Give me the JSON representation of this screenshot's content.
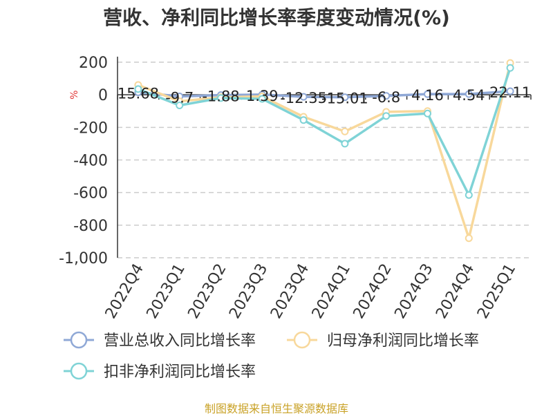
{
  "chart_data": {
    "type": "line",
    "title": "营收、净利同比增长率季度变动情况(%)",
    "ylabel": "%",
    "categories": [
      "2022Q4",
      "2023Q1",
      "2023Q2",
      "2023Q3",
      "2023Q4",
      "2024Q1",
      "2024Q2",
      "2024Q3",
      "2024Q4",
      "2025Q1"
    ],
    "ylim": [
      -1000,
      200
    ],
    "yticks": [
      200,
      0,
      -200,
      -400,
      -600,
      -800,
      -1000
    ],
    "ytick_labels": [
      "200",
      "0",
      "-200",
      "-400",
      "-600",
      "-800",
      "-1,000"
    ],
    "grid": true,
    "legend": "bottom",
    "series": [
      {
        "name": "营业总收入同比增长率",
        "color": "#8fa8d6",
        "values": [
          15.68,
          -9.7,
          -1.88,
          1.39,
          -12.35,
          -15.01,
          -6.8,
          4.16,
          4.54,
          22.11
        ],
        "labels": [
          "15.68",
          "-9.7",
          "-1.88",
          "1.39",
          "-12.35",
          "-15.01",
          "-6.8",
          "4.16",
          "4.54",
          "22.11"
        ]
      },
      {
        "name": "归母净利润同比增长率",
        "color": "#f8d89b",
        "values": [
          60,
          -40,
          -15,
          -10,
          -135,
          -225,
          -105,
          -100,
          -880,
          195
        ]
      },
      {
        "name": "扣非净利润同比增长率",
        "color": "#7fd3d6",
        "values": [
          35,
          -65,
          -20,
          -25,
          -155,
          -300,
          -130,
          -115,
          -615,
          165
        ]
      }
    ]
  },
  "footer": {
    "source": "制图数据来自恒生聚源数据库"
  }
}
